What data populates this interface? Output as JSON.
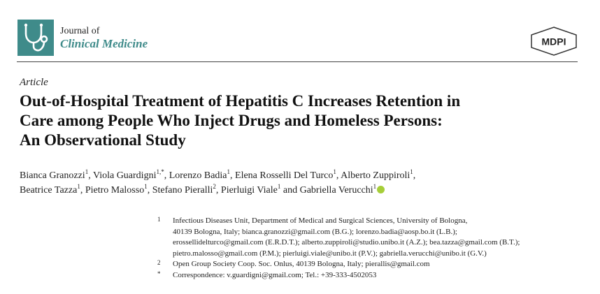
{
  "journal": {
    "line1": "Journal of",
    "line2": "Clinical Medicine",
    "logo_icon": "stethoscope-icon",
    "logo_color": "#3f8b8a"
  },
  "publisher": {
    "name": "MDPI"
  },
  "article": {
    "type": "Article",
    "title_lines": [
      "Out-of-Hospital Treatment of Hepatitis C Increases Retention in",
      "Care among People Who Inject Drugs and Homeless Persons:",
      "An Observational Study"
    ]
  },
  "authors": [
    {
      "name": "Bianca Granozzi",
      "sup": "1",
      "sep": ", "
    },
    {
      "name": "Viola Guardigni",
      "sup": "1,*",
      "sep": ", "
    },
    {
      "name": "Lorenzo Badia",
      "sup": "1",
      "sep": ", "
    },
    {
      "name": "Elena Rosselli Del Turco",
      "sup": "1",
      "sep": ", "
    },
    {
      "name": "Alberto Zuppiroli",
      "sup": "1",
      "sep": ","
    },
    {
      "name": "Beatrice Tazza",
      "sup": "1",
      "sep": ", "
    },
    {
      "name": "Pietro Malosso",
      "sup": "1",
      "sep": ", "
    },
    {
      "name": "Stefano Pieralli",
      "sup": "2",
      "sep": ", "
    },
    {
      "name": "Pierluigi Viale",
      "sup": "1",
      "sep": " and "
    },
    {
      "name": "Gabriella Verucchi",
      "sup": "1",
      "sep": ""
    }
  ],
  "affiliations": [
    {
      "marker": "1",
      "lines": [
        "Infectious Diseases Unit, Department of Medical and Surgical Sciences, University of Bologna,",
        "40139 Bologna, Italy; bianca.granozzi@gmail.com (B.G.); lorenzo.badia@aosp.bo.it (L.B.);",
        "erossellidelturco@gmail.com (E.R.D.T.); alberto.zuppiroli@studio.unibo.it (A.Z.); bea.tazza@gmail.com (B.T.);",
        "pietro.malosso@gmail.com (P.M.); pierluigi.viale@unibo.it (P.V.); gabriella.verucchi@unibo.it (G.V.)"
      ]
    },
    {
      "marker": "2",
      "lines": [
        "Open Group Society Coop. Soc. Onlus, 40139 Bologna, Italy; pierallis@gmail.com"
      ]
    },
    {
      "marker": "*",
      "lines": [
        "Correspondence: v.guardigni@gmail.com; Tel.: +39-333-4502053"
      ]
    }
  ],
  "orcid": {
    "icon": "orcid-icon",
    "color": "#a6ce39"
  }
}
